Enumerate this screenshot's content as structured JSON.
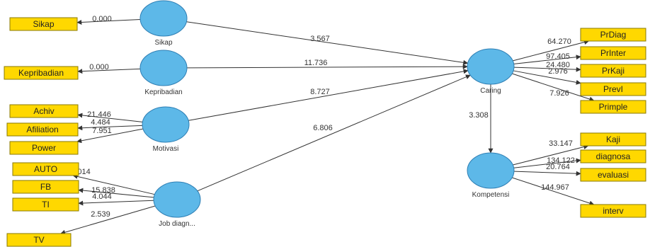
{
  "latents": [
    {
      "id": "sikap",
      "label": "Sikap"
    },
    {
      "id": "kepribadian",
      "label": "Kepribadian"
    },
    {
      "id": "motivasi",
      "label": "Motivasi"
    },
    {
      "id": "jobdiag",
      "label": "Job diagn..."
    },
    {
      "id": "caring",
      "label": "Caring"
    },
    {
      "id": "kompetensi",
      "label": "Kompetensi"
    }
  ],
  "indicators": [
    {
      "id": "sikap_i",
      "label": "Sikap"
    },
    {
      "id": "kepribadian_i",
      "label": "Kepribadian"
    },
    {
      "id": "achiv",
      "label": "Achiv"
    },
    {
      "id": "afiliation",
      "label": "Afiliation"
    },
    {
      "id": "power",
      "label": "Power"
    },
    {
      "id": "auto",
      "label": "AUTO"
    },
    {
      "id": "fb",
      "label": "FB"
    },
    {
      "id": "ti",
      "label": "TI"
    },
    {
      "id": "tv",
      "label": "TV"
    },
    {
      "id": "prdiag",
      "label": "PrDiag"
    },
    {
      "id": "printer",
      "label": "PrInter"
    },
    {
      "id": "prkaji",
      "label": "PrKaji"
    },
    {
      "id": "previ",
      "label": "PrevI"
    },
    {
      "id": "primple",
      "label": "Primple"
    },
    {
      "id": "kaji",
      "label": "Kaji"
    },
    {
      "id": "diagnosa",
      "label": "diagnosa"
    },
    {
      "id": "evaluasi",
      "label": "evaluasi"
    },
    {
      "id": "interv",
      "label": "interv"
    }
  ],
  "paths": [
    {
      "id": "sikap_caring",
      "value": "3.567"
    },
    {
      "id": "kepribadian_caring",
      "value": "11.736"
    },
    {
      "id": "motivasi_caring",
      "value": "8.727"
    },
    {
      "id": "jobdiag_caring",
      "value": "6.806"
    },
    {
      "id": "caring_kompetensi",
      "value": "3.308"
    }
  ],
  "loadings": [
    {
      "id": "sikap_i",
      "value": "0.000"
    },
    {
      "id": "kepribadian_i",
      "value": "0.000"
    },
    {
      "id": "achiv",
      "value": "21.446"
    },
    {
      "id": "afiliation",
      "value": "4.484"
    },
    {
      "id": "power",
      "value": "7.951"
    },
    {
      "id": "auto",
      "value": "4.014"
    },
    {
      "id": "fb",
      "value": "15.838"
    },
    {
      "id": "ti",
      "value": "4.044"
    },
    {
      "id": "tv",
      "value": "2.539"
    },
    {
      "id": "prdiag",
      "value": "64.270"
    },
    {
      "id": "printer",
      "value": "97.405"
    },
    {
      "id": "prkaji",
      "value": "24.480"
    },
    {
      "id": "previ",
      "value": "2.976"
    },
    {
      "id": "primple",
      "value": "7.926"
    },
    {
      "id": "kaji",
      "value": "33.147"
    },
    {
      "id": "diagnosa",
      "value": "134.122"
    },
    {
      "id": "evaluasi",
      "value": "20.764"
    },
    {
      "id": "interv",
      "value": "144.967"
    }
  ],
  "colors": {
    "latent": "#5DB8E8",
    "indicator": "#FFD800",
    "edge": "#333333"
  }
}
